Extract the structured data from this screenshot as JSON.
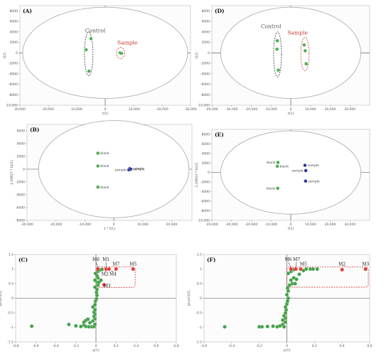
{
  "chart_data": [
    {
      "type": "scatter",
      "panel_label": "(A)",
      "xlabel": "t[1]",
      "ylabel": "t[2]",
      "xlim": [
        30000,
        -30000
      ],
      "ylim": [
        -10000,
        9000
      ],
      "x_ticks": [
        30000,
        20000,
        10000,
        0,
        -10000,
        -20000,
        -30000
      ],
      "x_tick_labels": [
        "30,000",
        "20,000",
        "10,000",
        "0",
        "-10,000",
        "-20,000",
        "-30,000"
      ],
      "y_ticks": [
        -10000,
        -8000,
        -6000,
        -4000,
        -2000,
        0,
        2000,
        4000,
        6000,
        8000
      ],
      "y_tick_labels": [
        "-10,000",
        "-8000",
        "-6000",
        "-4000",
        "-2000",
        "0",
        "2000",
        "4000",
        "6000",
        "8000"
      ],
      "ellipse": {
        "cx": 0,
        "cy": 0,
        "rx": 29000,
        "ry": 8700
      },
      "series": [
        {
          "name": "Control",
          "color": "#4caf50",
          "points": [
            [
              5000,
              2700
            ],
            [
              6700,
              600
            ],
            [
              5700,
              -3500
            ]
          ]
        },
        {
          "name": "Sample",
          "color": "#4caf50",
          "points": [
            [
              -5200,
              0
            ],
            [
              -5700,
              -100
            ]
          ]
        }
      ],
      "groups": [
        {
          "label": "Control",
          "label_color": "#555555",
          "cx": 5800,
          "cy": -200,
          "rx": 1500,
          "ry": 4200,
          "ring_color": "#333333",
          "label_x": 3500,
          "label_y": 3900
        },
        {
          "label": "Sample",
          "label_color": "#c0392b",
          "cx": -5400,
          "cy": -50,
          "rx": 1400,
          "ry": 1100,
          "ring_color": "#c0392b",
          "label_x": -7800,
          "label_y": 1600
        }
      ]
    },
    {
      "type": "scatter",
      "panel_label": "(D)",
      "xlabel": "t[1]",
      "ylabel": "t[2]",
      "xlim": [
        -40000,
        40000
      ],
      "ylim": [
        -10000,
        9000
      ],
      "x_ticks": [
        -40000,
        -30000,
        -20000,
        -10000,
        0,
        10000,
        20000,
        30000
      ],
      "x_tick_labels": [
        "-40,000",
        "-30,000",
        "-20,000",
        "-10,000",
        "0",
        "10,000",
        "20,000",
        "30,000"
      ],
      "y_ticks": [
        -10000,
        -8000,
        -6000,
        -4000,
        -2000,
        0,
        2000,
        4000,
        6000,
        8000
      ],
      "y_tick_labels": [
        "-10,000",
        "-8000",
        "-6000",
        "-4000",
        "-2000",
        "0",
        "2000",
        "4000",
        "6000",
        "8000"
      ],
      "ellipse": {
        "cx": 0,
        "cy": 0,
        "rx": 35500,
        "ry": 8700
      },
      "series": [
        {
          "name": "Control",
          "color": "#4caf50",
          "points": [
            [
              -6800,
              2300
            ],
            [
              -7000,
              700
            ],
            [
              -6300,
              -3300
            ]
          ]
        },
        {
          "name": "Sample",
          "color": "#4caf50",
          "points": [
            [
              6800,
              1500
            ],
            [
              7300,
              400
            ],
            [
              7800,
              -2100
            ]
          ]
        }
      ],
      "groups": [
        {
          "label": "Control",
          "label_color": "#555555",
          "cx": -6700,
          "cy": -300,
          "rx": 2000,
          "ry": 4300,
          "ring_color": "#333333",
          "label_x": -10000,
          "label_y": 4700
        },
        {
          "label": "Sample",
          "label_color": "#c0392b",
          "cx": 7200,
          "cy": -200,
          "rx": 2100,
          "ry": 3200,
          "ring_color": "#c0392b",
          "label_x": 3500,
          "label_y": 3500
        }
      ]
    },
    {
      "type": "scatter",
      "panel_label": "(B)",
      "xlabel": "1 * t[1]",
      "ylabel": "1.09827 * to[1]",
      "xlim": [
        -30000,
        27000
      ],
      "ylim": [
        -8000,
        7000
      ],
      "x_ticks": [
        -30000,
        -20000,
        -10000,
        0,
        10000,
        20000
      ],
      "x_tick_labels": [
        "-30,000",
        "-20,000",
        "-10,000",
        "0",
        "10,000",
        "20,000"
      ],
      "y_ticks": [
        -8000,
        -6000,
        -4000,
        -2000,
        0,
        2000,
        4000,
        6000
      ],
      "y_tick_labels": [
        "-8000",
        "-6000",
        "-4000",
        "-2000",
        "0",
        "2000",
        "4000",
        "6000"
      ],
      "ellipse": {
        "cx": 0,
        "cy": 0,
        "rx": 26000,
        "ry": 7600
      },
      "series": [
        {
          "name": "blank",
          "color": "#4caf50",
          "points": [
            [
              -5500,
              2500
            ],
            [
              -5500,
              500
            ],
            [
              -5500,
              -2800
            ]
          ],
          "labels": [
            "blank",
            "blank",
            "blank"
          ],
          "label_side": "right"
        },
        {
          "name": "sample",
          "color": "#283593",
          "points": [
            [
              5500,
              100
            ],
            [
              5200,
              -100
            ],
            [
              5800,
              0
            ]
          ],
          "labels": [
            "sample",
            "sample",
            "sample"
          ],
          "label_side": "mixed"
        }
      ]
    },
    {
      "type": "scatter",
      "panel_label": "(E)",
      "xlabel": "t[1]",
      "ylabel": "1.09823 * to[1]",
      "xlim": [
        -40000,
        40000
      ],
      "ylim": [
        -10000,
        9000
      ],
      "x_ticks": [
        -40000,
        -30000,
        -20000,
        -10000,
        0,
        10000,
        20000,
        30000
      ],
      "x_tick_labels": [
        "-40,000",
        "-30,000",
        "-20,000",
        "-10,000",
        "0",
        "10,000",
        "20,000",
        "30,000"
      ],
      "y_ticks": [
        -10000,
        -8000,
        -6000,
        -4000,
        -2000,
        0,
        2000,
        4000,
        6000,
        8000
      ],
      "y_tick_labels": [
        "-10,000",
        "-8000",
        "-6000",
        "-4000",
        "-2000",
        "0",
        "2000",
        "4000",
        "6000",
        "8000"
      ],
      "ellipse": {
        "cx": 0,
        "cy": 0,
        "rx": 35500,
        "ry": 8700
      },
      "series": [
        {
          "name": "blank",
          "color": "#4caf50",
          "points": [
            [
              -6500,
              2100
            ],
            [
              -6800,
              1300
            ],
            [
              -6600,
              -3300
            ]
          ],
          "labels": [
            "blank",
            "blank",
            "blank"
          ],
          "label_side": "mixed"
        },
        {
          "name": "sample",
          "color": "#283593",
          "points": [
            [
              7200,
              1500
            ],
            [
              7600,
              400
            ],
            [
              7500,
              -1800
            ]
          ],
          "labels": [
            "sample",
            "sample",
            "sample"
          ],
          "label_side": "mixed"
        }
      ]
    },
    {
      "type": "scatter",
      "panel_label": "(C)",
      "xlabel": "p[1]",
      "ylabel": "p(corr)[1]",
      "xlim": [
        -0.8,
        0.8
      ],
      "ylim": [
        -1.5,
        1.5
      ],
      "x_ticks": [
        -0.8,
        -0.6,
        -0.4,
        -0.2,
        0,
        0.2,
        0.4,
        0.6,
        0.8
      ],
      "x_tick_labels": [
        "-0.8",
        "-0.6",
        "-0.4",
        "-0.2",
        "0",
        "0.2",
        "0.4",
        "0.6",
        "0.8"
      ],
      "y_ticks": [
        -1.5,
        -1,
        -0.5,
        0,
        0.5,
        1,
        1.5
      ],
      "y_tick_labels": [
        "-1.5",
        "-1",
        "-0.5",
        "0",
        "0.5",
        "1",
        "1.5"
      ],
      "series": [
        {
          "name": "variables",
          "color": "#43a047",
          "points": [
            [
              -0.64,
              -0.96
            ],
            [
              -0.27,
              -0.9
            ],
            [
              -0.2,
              -0.95
            ],
            [
              -0.15,
              -0.97
            ],
            [
              -0.12,
              -0.92
            ],
            [
              -0.1,
              -0.97
            ],
            [
              -0.07,
              -0.98
            ],
            [
              -0.04,
              -0.98
            ],
            [
              -0.02,
              -0.97
            ],
            [
              -0.01,
              -0.9
            ],
            [
              -0.12,
              -0.82
            ],
            [
              -0.1,
              -0.76
            ],
            [
              -0.06,
              -0.84
            ],
            [
              -0.03,
              -0.78
            ],
            [
              -0.08,
              -0.72
            ],
            [
              -0.01,
              -0.7
            ],
            [
              -0.02,
              -0.62
            ],
            [
              -0.01,
              -0.55
            ],
            [
              -0.02,
              -0.48
            ],
            [
              -0.01,
              -0.4
            ],
            [
              -0.03,
              -0.3
            ],
            [
              -0.01,
              -0.22
            ],
            [
              -0.005,
              -0.1
            ],
            [
              0.005,
              -0.02
            ],
            [
              0.01,
              0.1
            ],
            [
              0.005,
              0.2
            ],
            [
              0.01,
              0.3
            ],
            [
              -0.01,
              0.38
            ],
            [
              0.02,
              0.45
            ],
            [
              0.01,
              0.55
            ],
            [
              -0.01,
              0.62
            ],
            [
              0.02,
              0.7
            ],
            [
              0.01,
              0.78
            ],
            [
              -0.005,
              0.85
            ],
            [
              0.03,
              0.55
            ],
            [
              0.05,
              0.62
            ],
            [
              0.02,
              0.92
            ],
            [
              0.04,
              0.97
            ],
            [
              0.06,
              0.99
            ]
          ]
        },
        {
          "name": "markers",
          "color": "#e53935",
          "points": [
            [
              0.02,
              1.0
            ],
            [
              0.1,
              1.0
            ],
            [
              0.13,
              1.0
            ],
            [
              0.2,
              1.0
            ],
            [
              0.37,
              1.0
            ],
            [
              0.08,
              0.46
            ]
          ]
        }
      ],
      "highlight_box": {
        "x1": 0.0,
        "x2": 0.39,
        "y1": 0.37,
        "y2": 1.08
      },
      "annotations": [
        {
          "text": "M6",
          "x": 0.02,
          "y": 1.0,
          "tx": 0.0,
          "ty": 1.28,
          "arrow": true
        },
        {
          "text": "M1",
          "x": 0.1,
          "y": 1.0,
          "tx": 0.1,
          "ty": 1.28,
          "arrow": true
        },
        {
          "text": "M7",
          "x": 0.2,
          "y": 1.0,
          "tx": 0.2,
          "ty": 1.12,
          "arrow": false
        },
        {
          "text": "M5",
          "x": 0.37,
          "y": 1.0,
          "tx": 0.37,
          "ty": 1.12,
          "arrow": false
        },
        {
          "text": "M2",
          "x": 0.1,
          "y": 1.0,
          "tx": 0.09,
          "ty": 0.78,
          "arrow": true
        },
        {
          "text": "M4",
          "x": 0.15,
          "y": 1.0,
          "tx": 0.17,
          "ty": 0.78,
          "arrow": true
        },
        {
          "text": "M3",
          "x": 0.08,
          "y": 0.46,
          "tx": 0.11,
          "ty": 0.38,
          "arrow": false
        }
      ]
    },
    {
      "type": "scatter",
      "panel_label": "(F)",
      "xlabel": "p[1]",
      "ylabel": "p(corr)[1]",
      "xlim": [
        -0.6,
        0.6
      ],
      "ylim": [
        -1.5,
        1.5
      ],
      "x_ticks": [
        -0.6,
        -0.4,
        -0.2,
        0,
        0.2,
        0.4,
        0.6
      ],
      "x_tick_labels": [
        "-0.6",
        "-0.4",
        "-0.2",
        "0",
        "0.2",
        "0.4",
        "0.6"
      ],
      "y_ticks": [
        -1.5,
        -1,
        -0.5,
        0,
        0.5,
        1,
        1.5
      ],
      "y_tick_labels": [
        "-1.5",
        "-1",
        "-0.5",
        "0",
        "0.5",
        "1",
        "1.5"
      ],
      "series": [
        {
          "name": "variables",
          "color": "#43a047",
          "points": [
            [
              -0.45,
              -0.98
            ],
            [
              -0.2,
              -0.98
            ],
            [
              -0.18,
              -0.98
            ],
            [
              -0.14,
              -0.97
            ],
            [
              -0.1,
              -0.96
            ],
            [
              -0.07,
              -0.98
            ],
            [
              -0.05,
              -0.95
            ],
            [
              -0.03,
              -0.9
            ],
            [
              -0.02,
              -0.98
            ],
            [
              -0.01,
              -0.82
            ],
            [
              -0.03,
              -0.75
            ],
            [
              -0.01,
              -0.68
            ],
            [
              -0.02,
              -0.6
            ],
            [
              -0.01,
              -0.5
            ],
            [
              -0.005,
              -0.4
            ],
            [
              -0.01,
              -0.3
            ],
            [
              0.0,
              -0.2
            ],
            [
              0.005,
              -0.1
            ],
            [
              0.01,
              0.0
            ],
            [
              0.0,
              0.12
            ],
            [
              0.01,
              0.25
            ],
            [
              0.005,
              0.35
            ],
            [
              0.02,
              0.45
            ],
            [
              0.04,
              0.5
            ],
            [
              0.06,
              0.5
            ],
            [
              0.03,
              0.62
            ],
            [
              0.05,
              0.7
            ],
            [
              0.07,
              0.65
            ],
            [
              0.09,
              0.82
            ],
            [
              0.12,
              0.95
            ],
            [
              0.14,
              1.0
            ],
            [
              0.17,
              1.0
            ],
            [
              0.19,
              1.0
            ],
            [
              0.22,
              1.0
            ],
            [
              0.01,
              0.85
            ],
            [
              0.03,
              0.92
            ],
            [
              0.05,
              0.98
            ]
          ]
        },
        {
          "name": "markers",
          "color": "#e53935",
          "points": [
            [
              0.03,
              1.0
            ],
            [
              0.065,
              1.0
            ],
            [
              0.1,
              1.0
            ],
            [
              0.4,
              0.98
            ],
            [
              0.57,
              1.0
            ]
          ]
        }
      ],
      "highlight_box": {
        "x1": 0.0,
        "x2": 0.59,
        "y1": 0.38,
        "y2": 1.07
      },
      "annotations": [
        {
          "text": "M6",
          "x": 0.03,
          "y": 1.0,
          "tx": 0.01,
          "ty": 1.28,
          "arrow": true
        },
        {
          "text": "M7",
          "x": 0.065,
          "y": 1.0,
          "tx": 0.07,
          "ty": 1.28,
          "arrow": true
        },
        {
          "text": "M5",
          "x": 0.1,
          "y": 1.0,
          "tx": 0.12,
          "ty": 1.12,
          "arrow": false
        },
        {
          "text": "M2",
          "x": 0.4,
          "y": 0.98,
          "tx": 0.4,
          "ty": 1.12,
          "arrow": false
        },
        {
          "text": "M3",
          "x": 0.57,
          "y": 1.0,
          "tx": 0.57,
          "ty": 1.12,
          "arrow": false
        }
      ]
    }
  ]
}
